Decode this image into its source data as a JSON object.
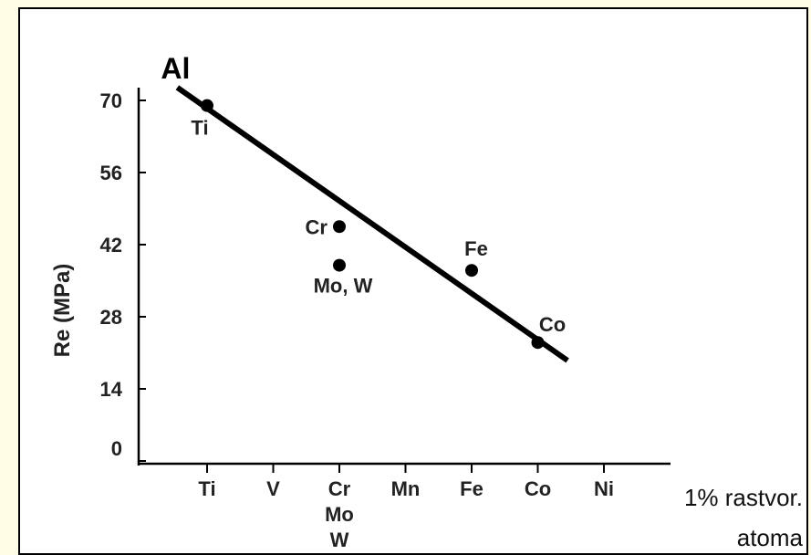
{
  "chart_data": {
    "type": "scatter",
    "title": "",
    "ylabel": "Re (MPa)",
    "xlabel_lines": [
      "1% rastvor.",
      "atoma"
    ],
    "ylim": [
      0,
      70
    ],
    "yticks": [
      "0",
      "14",
      "28",
      "42",
      "56",
      "70"
    ],
    "yticks_values": [
      0,
      14,
      28,
      42,
      56,
      70
    ],
    "categories": [
      "Ti",
      "V",
      "Cr",
      "Mn",
      "Fe",
      "Co",
      "Ni"
    ],
    "category_tick_labels": [
      [
        "Ti"
      ],
      [
        "V"
      ],
      [
        "Cr",
        "Mo",
        "W"
      ],
      [
        "Mn"
      ],
      [
        "Fe"
      ],
      [
        "Co"
      ],
      [
        "Ni"
      ]
    ],
    "points": [
      {
        "label": "Ti",
        "category_index": 0,
        "y": 69
      },
      {
        "label": "Cr",
        "category_index": 2,
        "y": 45.5
      },
      {
        "label": "Mo, W",
        "category_index": 2,
        "y": 38
      },
      {
        "label": "Fe",
        "category_index": 4,
        "y": 37
      },
      {
        "label": "Co",
        "category_index": 5,
        "y": 23
      }
    ],
    "trend_line": {
      "label": "Al",
      "start": {
        "category_index": -0.45,
        "y": 72.5
      },
      "end": {
        "category_index": 5.45,
        "y": 19.5
      }
    },
    "grid": false,
    "colors": {
      "line": "#000000",
      "points": "#000000",
      "text": "#222222",
      "background": "#fffde6"
    }
  }
}
